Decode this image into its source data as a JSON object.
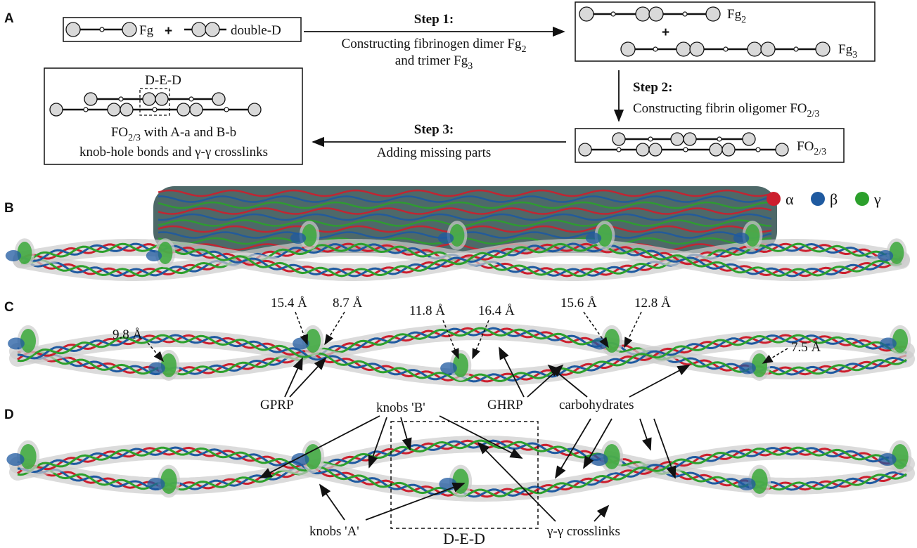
{
  "panels": {
    "a": "A",
    "b": "B",
    "c": "C",
    "d": "D"
  },
  "box1": {
    "fg": "Fg",
    "plus": "+",
    "double_d": "double-D"
  },
  "step1": {
    "title": "Step 1:",
    "line1": "Constructing fibrinogen dimer Fg",
    "line1_sub": "2",
    "line2": "and trimer Fg",
    "line2_sub": "3"
  },
  "box2": {
    "fg2": "Fg",
    "fg2_sub": "2",
    "plus": "+",
    "fg3": "Fg",
    "fg3_sub": "3"
  },
  "step2": {
    "title": "Step 2:",
    "line1": "Constructing fibrin oligomer FO",
    "line1_sub": "2/3"
  },
  "box3": {
    "label": "FO",
    "label_sub": "2/3"
  },
  "step3": {
    "title": "Step 3:",
    "line1": "Adding missing parts"
  },
  "box4": {
    "ded": "D-E-D",
    "line1": "FO",
    "line1_sub": "2/3",
    "line1_rest": " with A-a and B-b",
    "line2": "knob-hole bonds and γ-γ crosslinks"
  },
  "legend": [
    {
      "name": "α",
      "color": "#cc1f2e"
    },
    {
      "name": "β",
      "color": "#1f5aa0"
    },
    {
      "name": "γ",
      "color": "#2ca02c"
    }
  ],
  "panel_c": {
    "distances": [
      "15.4 Å",
      "8.7 Å",
      "11.8 Å",
      "16.4 Å",
      "15.6 Å",
      "12.8 Å",
      "9.8 Å",
      "7.5 Å"
    ],
    "gprp": "GPRP",
    "ghrp": "GHRP",
    "carbohydrates": "carbohydrates"
  },
  "panel_d": {
    "knobs_b": "knobs 'B'",
    "knobs_a": "knobs 'A'",
    "crosslinks": "γ-γ crosslinks",
    "ded": "D-E-D"
  }
}
